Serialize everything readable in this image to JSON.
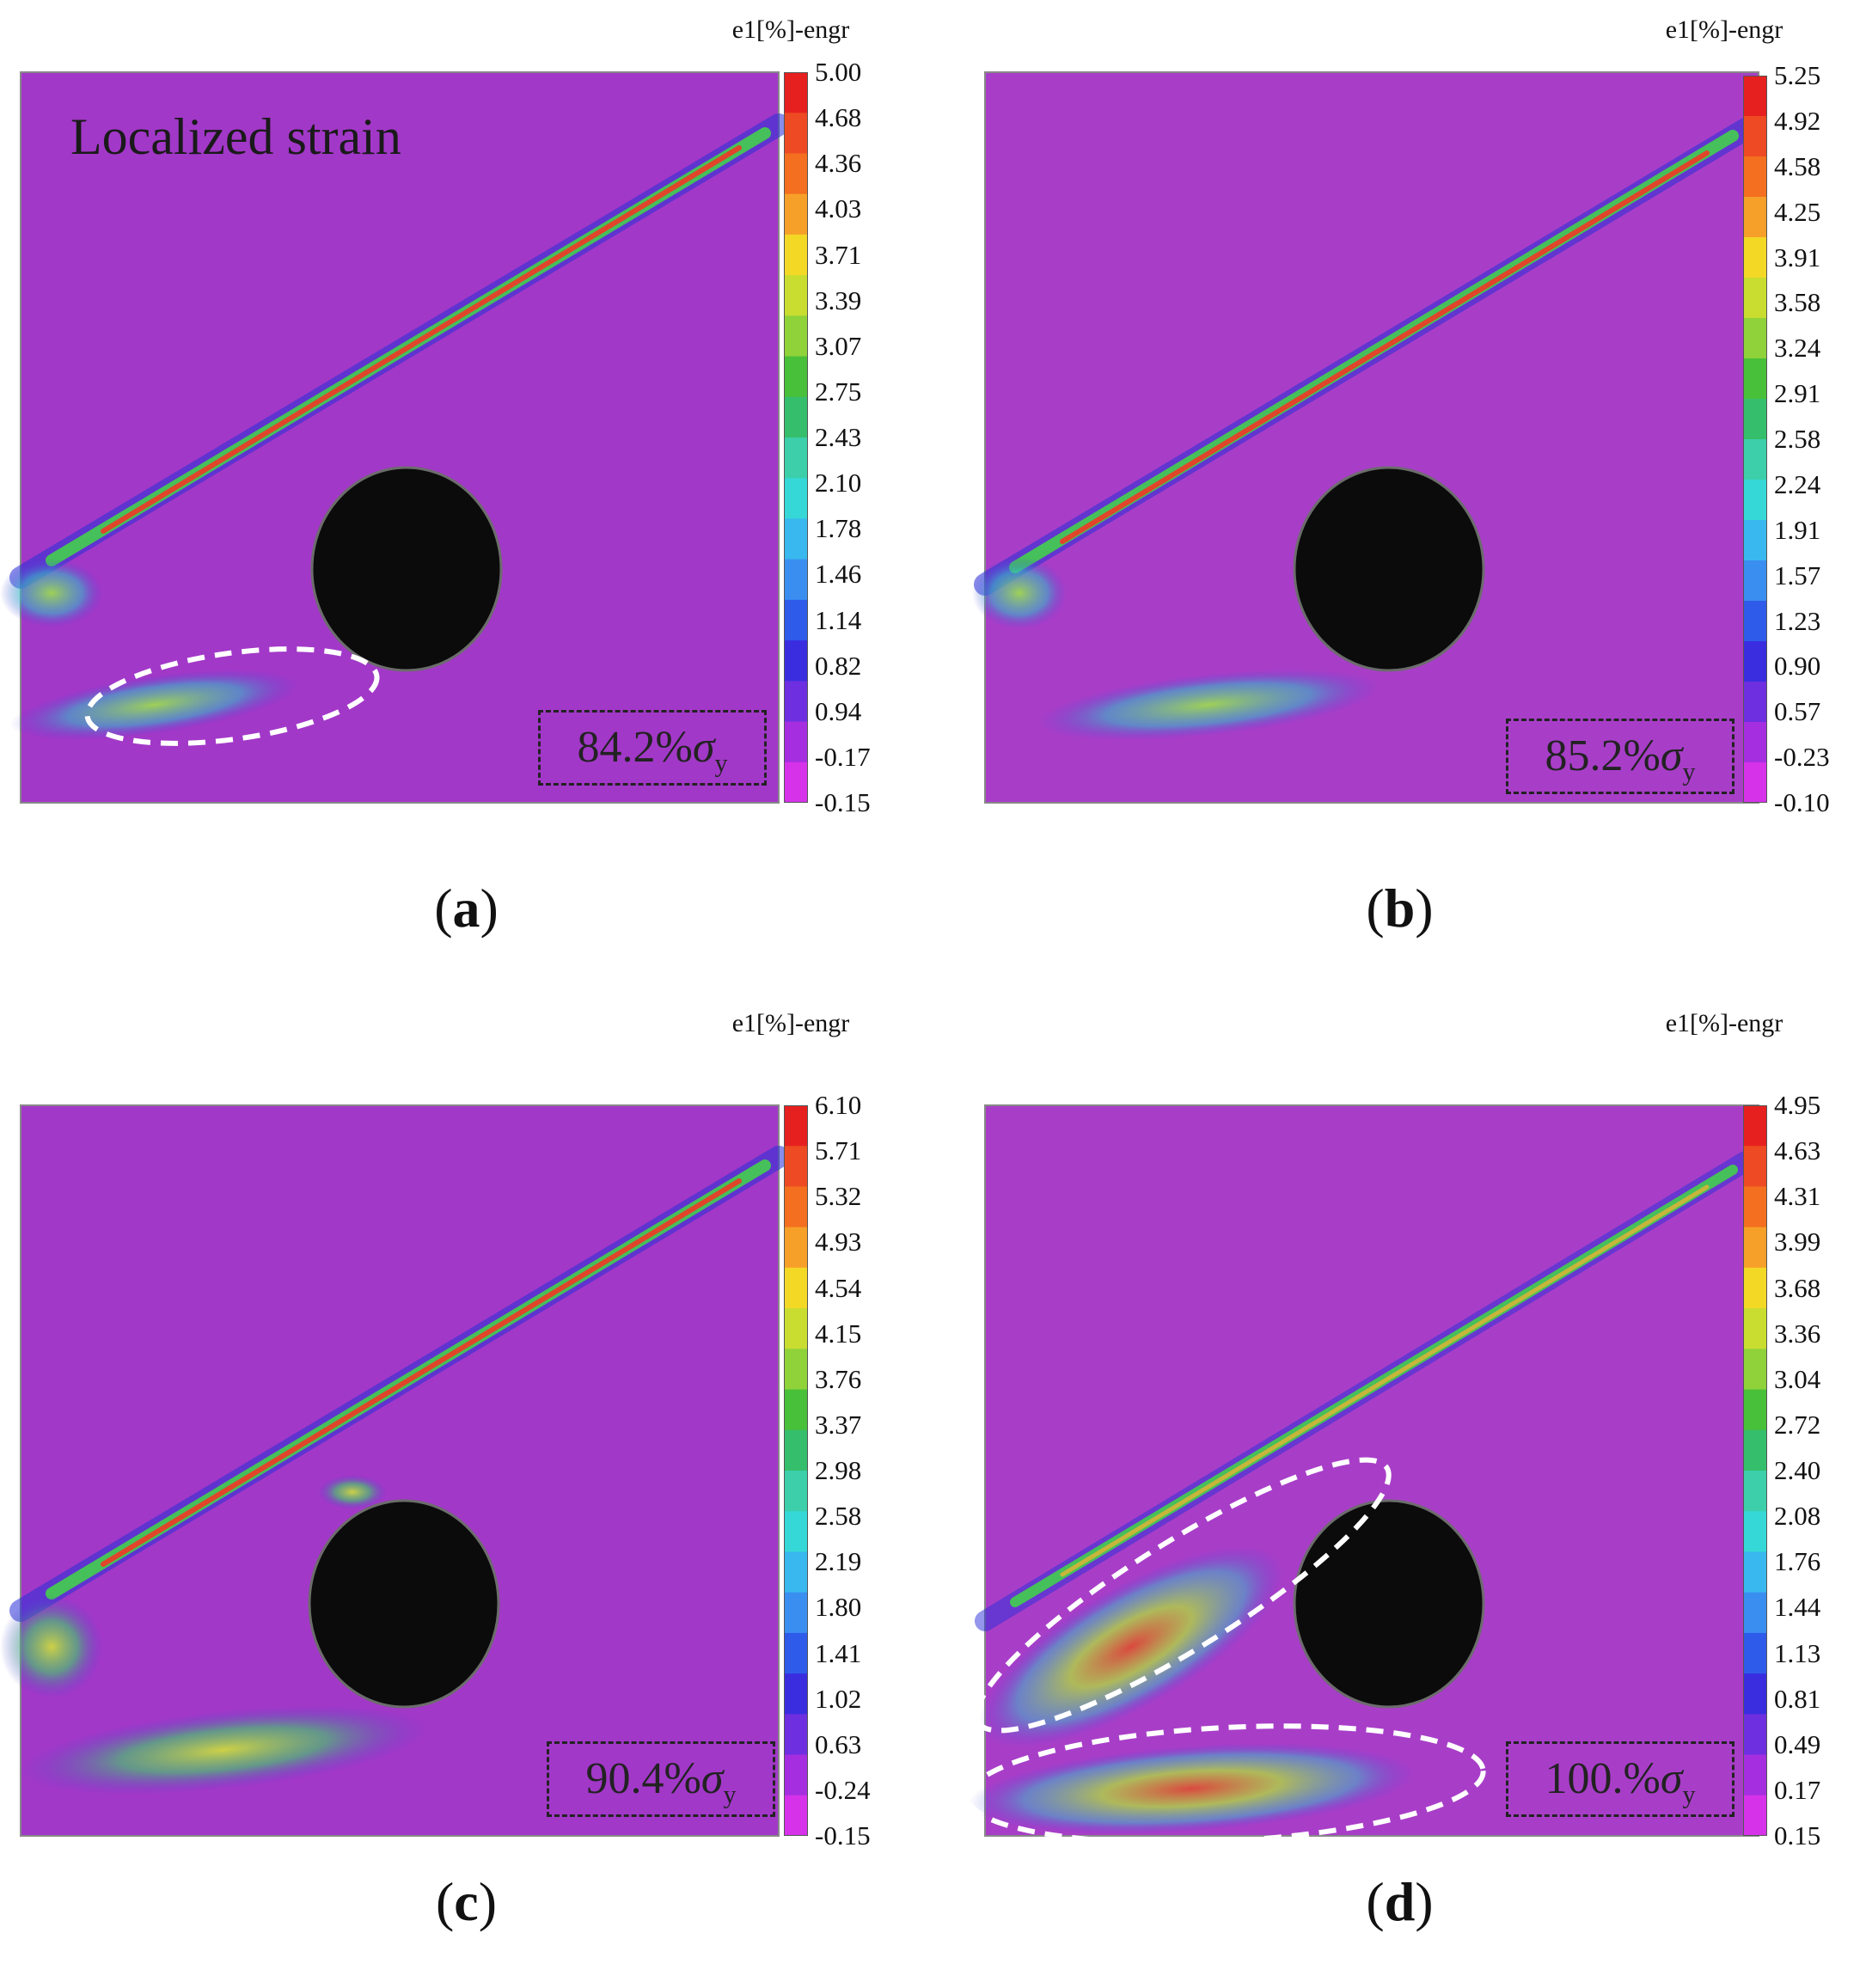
{
  "colorbar_title": "e1[%]-engr",
  "colorbar_colors": [
    "#e6201f",
    "#ee4a24",
    "#f46f1f",
    "#f6a02a",
    "#f4d826",
    "#c8dd30",
    "#8fd23a",
    "#49c03a",
    "#35be6b",
    "#3ccfaa",
    "#35d8d6",
    "#38b8ee",
    "#3a8ef0",
    "#2f5bea",
    "#3a2de0",
    "#6e2fe0",
    "#a52fe0",
    "#d632ea"
  ],
  "panels": [
    {
      "id": "a",
      "label": "a",
      "load": "84.2%",
      "sigma": "σ",
      "sub": "y",
      "annotation": "Localized strain",
      "ticks": [
        "5.00",
        "4.68",
        "4.36",
        "4.03",
        "3.71",
        "3.39",
        "3.07",
        "2.75",
        "2.43",
        "2.10",
        "1.78",
        "1.46",
        "1.14",
        "0.82",
        "0.94",
        "-0.17",
        "-0.15"
      ]
    },
    {
      "id": "b",
      "label": "b",
      "load": "85.2%",
      "sigma": "σ",
      "sub": "y",
      "ticks": [
        "5.25",
        "4.92",
        "4.58",
        "4.25",
        "3.91",
        "3.58",
        "3.24",
        "2.91",
        "2.58",
        "2.24",
        "1.91",
        "1.57",
        "1.23",
        "0.90",
        "0.57",
        "-0.23",
        "-0.10"
      ]
    },
    {
      "id": "c",
      "label": "c",
      "load": "90.4%",
      "sigma": "σ",
      "sub": "y",
      "ticks": [
        "6.10",
        "5.71",
        "5.32",
        "4.93",
        "4.54",
        "4.15",
        "3.76",
        "3.37",
        "2.98",
        "2.58",
        "2.19",
        "1.80",
        "1.41",
        "1.02",
        "0.63",
        "-0.24",
        "-0.15"
      ]
    },
    {
      "id": "d",
      "label": "d",
      "load": "100.%",
      "sigma": "σ",
      "sub": "y",
      "ticks": [
        "4.95",
        "4.63",
        "4.31",
        "3.99",
        "3.68",
        "3.36",
        "3.04",
        "2.72",
        "2.40",
        "2.08",
        "1.76",
        "1.44",
        "1.13",
        "0.81",
        "0.49",
        "0.17",
        "0.15"
      ]
    }
  ]
}
